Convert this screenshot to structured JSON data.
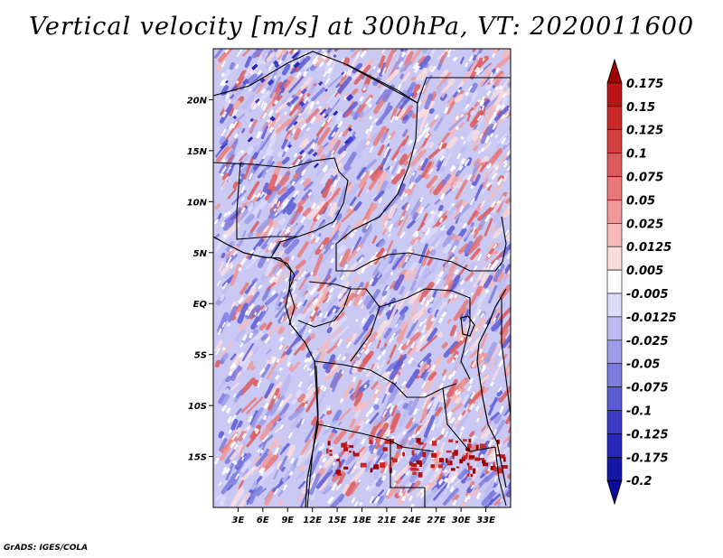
{
  "title": "Vertical velocity [m/s] at 300hPa, VT: 2020011600",
  "credit": "GrADS: IGES/COLA",
  "map": {
    "field": "vertical velocity",
    "units": "m/s",
    "level": "300hPa",
    "valid_time": "2020011600",
    "lon_range": [
      0,
      36
    ],
    "lat_range": [
      -20,
      25
    ]
  },
  "lat_ticks": [
    "20N",
    "15N",
    "10N",
    "5N",
    "EQ",
    "5S",
    "10S",
    "15S"
  ],
  "lon_ticks": [
    "3E",
    "6E",
    "9E",
    "12E",
    "15E",
    "18E",
    "21E",
    "24E",
    "27E",
    "30E",
    "33E"
  ],
  "colorbar": {
    "labels": [
      "0.175",
      "0.15",
      "0.125",
      "0.1",
      "0.075",
      "0.05",
      "0.025",
      "0.0125",
      "0.005",
      "-0.005",
      "-0.0125",
      "-0.025",
      "-0.05",
      "-0.075",
      "-0.1",
      "-0.125",
      "-0.175",
      "-0.2"
    ],
    "colors": [
      "#9e0000",
      "#b81414",
      "#c82828",
      "#d44040",
      "#de5a5a",
      "#e87878",
      "#f09898",
      "#f7baba",
      "#fbdcdc",
      "#ffffff",
      "#dcdcfa",
      "#bcbcf2",
      "#9c9ce8",
      "#7c7cde",
      "#5c5cd2",
      "#3c3cc6",
      "#2626b8",
      "#1616a8",
      "#0a0a96"
    ]
  }
}
